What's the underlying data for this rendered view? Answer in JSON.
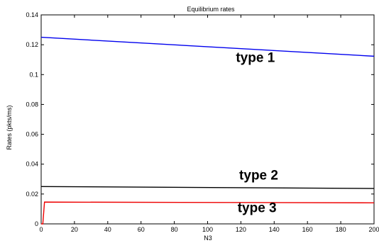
{
  "chart_data": {
    "type": "line",
    "title": "Equilibrium rates",
    "xlabel": "N3",
    "ylabel": "Rates (pkts/ms)",
    "xlim": [
      0,
      200
    ],
    "ylim": [
      0,
      0.14
    ],
    "xticks": [
      0,
      20,
      40,
      60,
      80,
      100,
      120,
      140,
      160,
      180,
      200
    ],
    "yticks": [
      0,
      0.02,
      0.04,
      0.06,
      0.08,
      0.1,
      0.12,
      0.14
    ],
    "ytick_labels": [
      "0",
      "0.02",
      "0.04",
      "0.06",
      "0.08",
      "0.1",
      "0.12",
      "0.14"
    ],
    "grid": false,
    "series": [
      {
        "color": "#0000ee",
        "x": [
          0,
          200
        ],
        "y": [
          0.125,
          0.1123
        ]
      },
      {
        "color": "#000000",
        "x": [
          0,
          200
        ],
        "y": [
          0.025,
          0.0237
        ]
      },
      {
        "color": "#ee0000",
        "x": [
          0,
          1,
          2,
          200
        ],
        "y": [
          0,
          0,
          0.0146,
          0.0141
        ]
      }
    ],
    "annotations": [
      {
        "text": "type 1",
        "x": 117,
        "y": 0.1085
      },
      {
        "text": "type 2",
        "x": 119,
        "y": 0.0296
      },
      {
        "text": "type 3",
        "x": 118,
        "y": 0.0079
      }
    ]
  }
}
